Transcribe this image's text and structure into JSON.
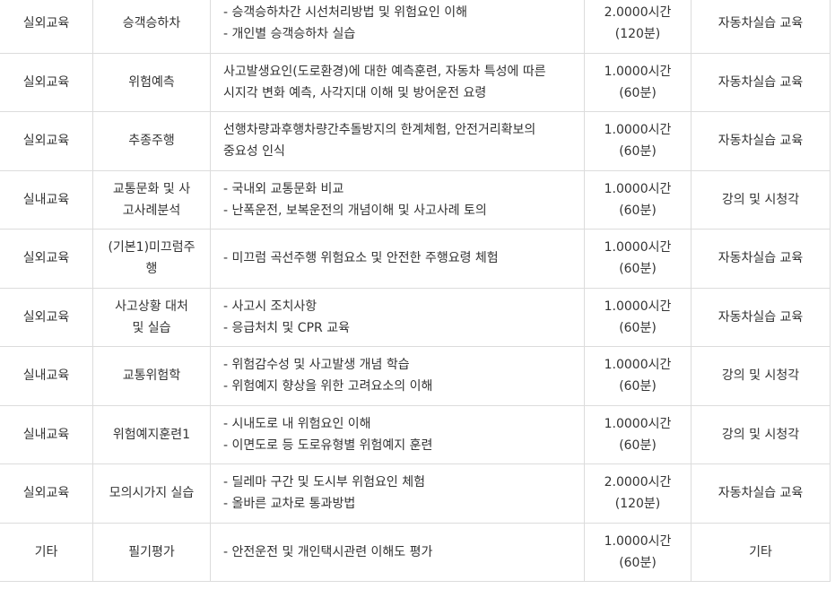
{
  "rows": [
    {
      "type": "실외교육",
      "subject": "승객승하차",
      "content": [
        "- 승객승하차간 시선처리방법 및 위험요인 이해",
        "- 개인별 승객승하차 실습"
      ],
      "hours": "2.0000시간",
      "minutes": "(120분)",
      "method": "자동차실습 교육"
    },
    {
      "type": "실외교육",
      "subject": "위험예측",
      "content": [
        "사고발생요인(도로환경)에 대한 예측훈련, 자동차 특성에 따른",
        "시지각 변화 예측, 사각지대 이해 및 방어운전 요령"
      ],
      "hours": "1.0000시간",
      "minutes": "(60분)",
      "method": "자동차실습 교육"
    },
    {
      "type": "실외교육",
      "subject": "추종주행",
      "content": [
        "선행차량과후행차량간추돌방지의 한계체험, 안전거리확보의",
        "중요성 인식"
      ],
      "hours": "1.0000시간",
      "minutes": "(60분)",
      "method": "자동차실습 교육"
    },
    {
      "type": "실내교육",
      "subject": "교통문화 및 사고사례분석",
      "content": [
        "- 국내외 교통문화 비교",
        "- 난폭운전, 보복운전의 개념이해 및 사고사례 토의"
      ],
      "hours": "1.0000시간",
      "minutes": "(60분)",
      "method": "강의 및 시청각"
    },
    {
      "type": "실외교육",
      "subject": "(기본1)미끄럼주행",
      "content": [
        "- 미끄럼 곡선주행 위험요소 및 안전한 주행요령 체험"
      ],
      "hours": "1.0000시간",
      "minutes": "(60분)",
      "method": "자동차실습 교육"
    },
    {
      "type": "실외교육",
      "subject": "사고상황 대처 및 실습",
      "content": [
        "- 사고시 조치사항",
        "- 응급처치 및 CPR 교육"
      ],
      "hours": "1.0000시간",
      "minutes": "(60분)",
      "method": "자동차실습 교육"
    },
    {
      "type": "실내교육",
      "subject": "교통위험학",
      "content": [
        "- 위험감수성 및 사고발생 개념 학습",
        "- 위험예지 향상을 위한 고려요소의 이해"
      ],
      "hours": "1.0000시간",
      "minutes": "(60분)",
      "method": "강의 및 시청각"
    },
    {
      "type": "실내교육",
      "subject": "위험예지훈련1",
      "content": [
        "- 시내도로 내 위험요인 이해",
        "- 이면도로 등 도로유형별 위험예지 훈련"
      ],
      "hours": "1.0000시간",
      "minutes": "(60분)",
      "method": "강의 및 시청각"
    },
    {
      "type": "실외교육",
      "subject": "모의시가지 실습",
      "content": [
        "- 딜레마 구간 및 도시부 위험요인 체험",
        "- 올바른 교차로 통과방법"
      ],
      "hours": "2.0000시간",
      "minutes": "(120분)",
      "method": "자동차실습 교육"
    },
    {
      "type": "기타",
      "subject": "필기평가",
      "content": [
        "- 안전운전 및 개인택시관련 이해도 평가"
      ],
      "hours": "1.0000시간",
      "minutes": "(60분)",
      "method": "기타"
    }
  ]
}
